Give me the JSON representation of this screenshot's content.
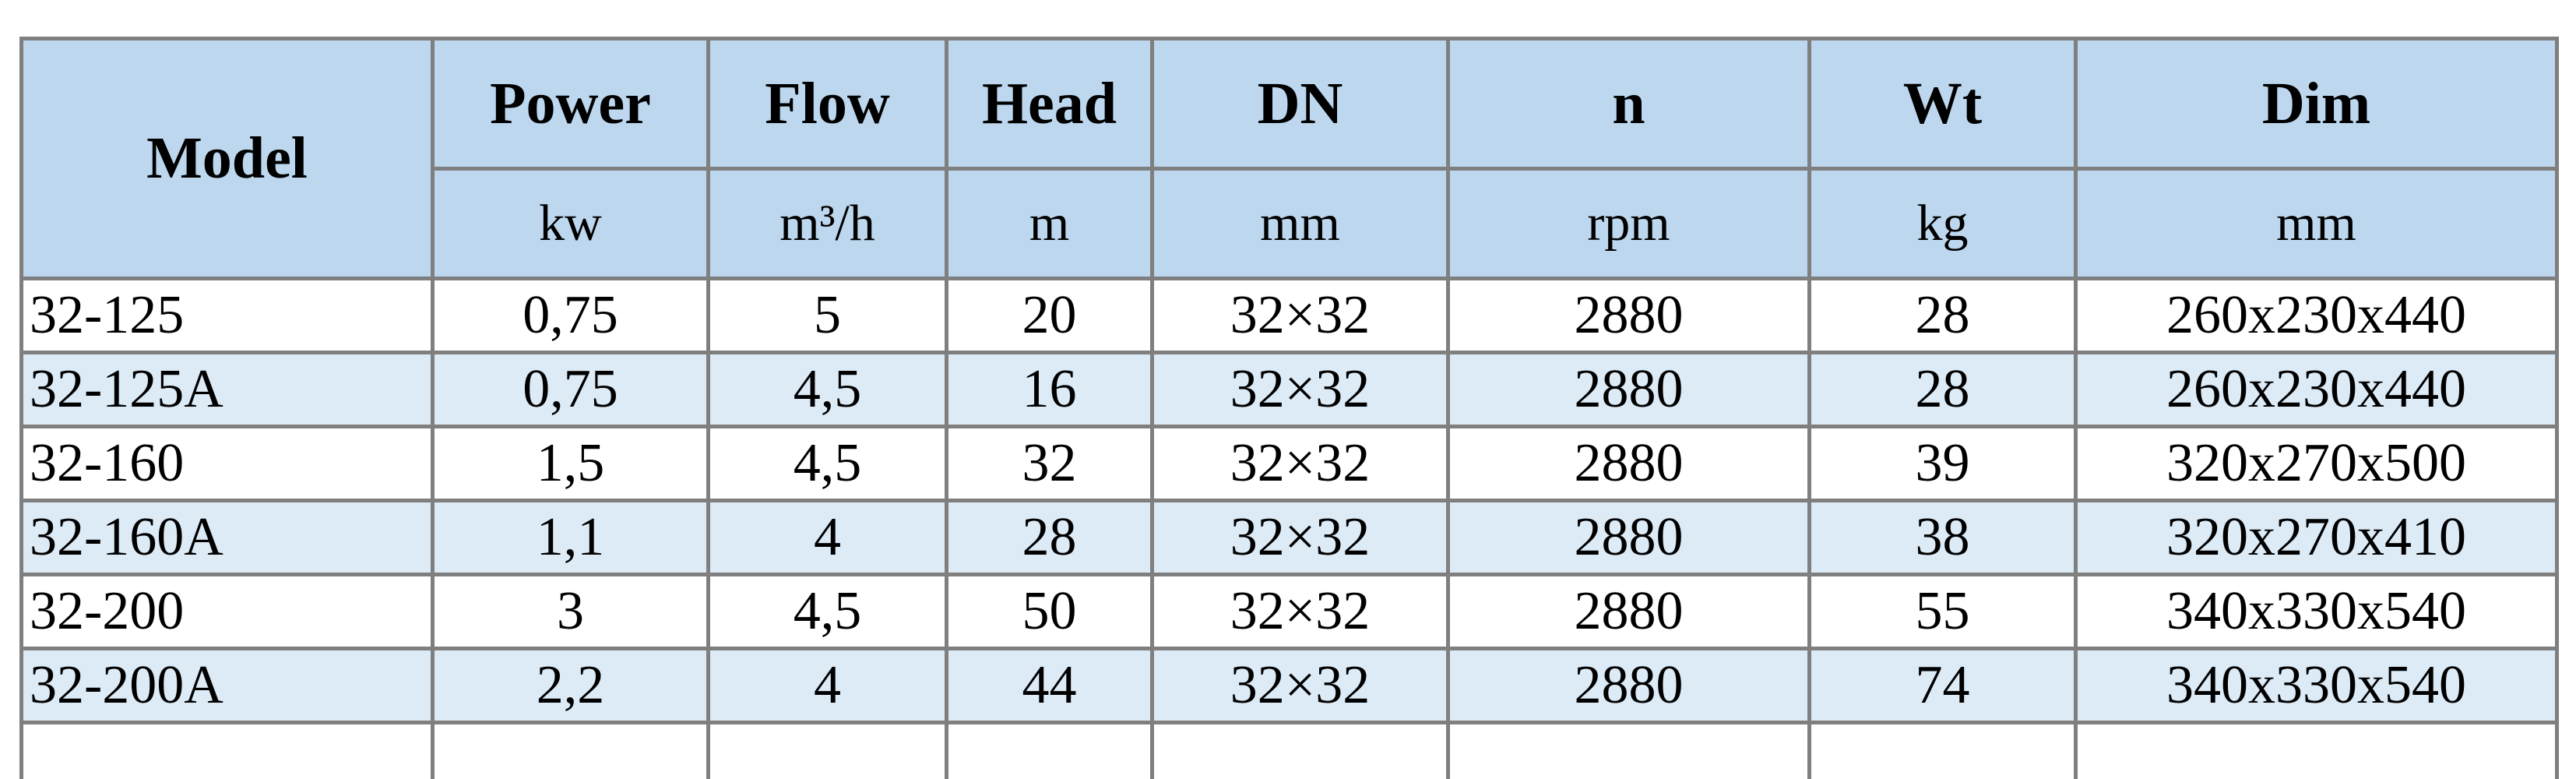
{
  "table": {
    "headers": [
      {
        "label": "Model",
        "unit": ""
      },
      {
        "label": "Power",
        "unit": "kw"
      },
      {
        "label": "Flow",
        "unit": "m³/h"
      },
      {
        "label": "Head",
        "unit": "m"
      },
      {
        "label": "DN",
        "unit": "mm"
      },
      {
        "label": "n",
        "unit": "rpm"
      },
      {
        "label": "Wt",
        "unit": "kg"
      },
      {
        "label": "Dim",
        "unit": "mm"
      }
    ],
    "rows": [
      [
        "32-125",
        "0,75",
        "5",
        "20",
        "32×32",
        "2880",
        "28",
        "260x230x440"
      ],
      [
        "32-125A",
        "0,75",
        "4,5",
        "16",
        "32×32",
        "2880",
        "28",
        "260x230x440"
      ],
      [
        "32-160",
        "1,5",
        "4,5",
        "32",
        "32×32",
        "2880",
        "39",
        "320x270x500"
      ],
      [
        "32-160A",
        "1,1",
        "4",
        "28",
        "32×32",
        "2880",
        "38",
        "320x270x410"
      ],
      [
        "32-200",
        "3",
        "4,5",
        "50",
        "32×32",
        "2880",
        "55",
        "340x330x540"
      ],
      [
        "32-200A",
        "2,2",
        "4",
        "44",
        "32×32",
        "2880",
        "74",
        "340x330x540"
      ]
    ]
  },
  "colors": {
    "header_bg": "#bdd7ee",
    "alt_row_bg": "#ddebf7",
    "border": "#7f7f7f"
  }
}
